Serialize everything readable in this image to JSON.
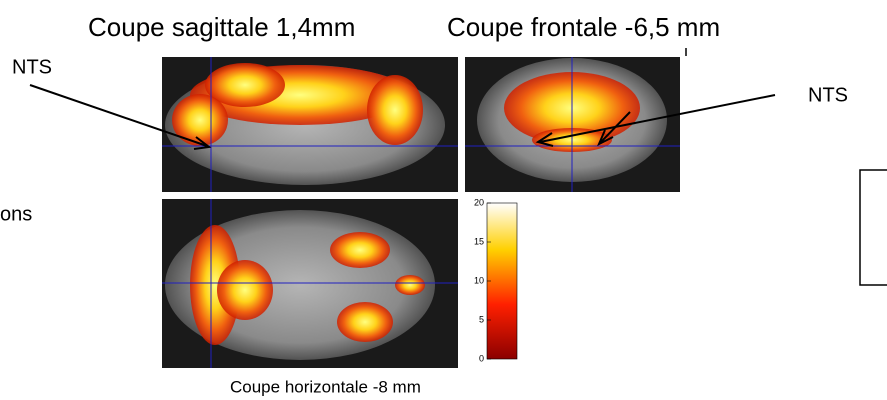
{
  "labels": {
    "sagittal_title": "Coupe sagittale 1,4mm",
    "frontal_title": "Coupe frontale -6,5 mm",
    "nts_left": "NTS",
    "nts_right": "NTS",
    "side_text": "ons",
    "horizontal_caption": "Coupe horizontale   -8 mm"
  },
  "colorbar": {
    "lim": [
      0,
      20
    ],
    "ticks": [
      0,
      5,
      10,
      15,
      20
    ]
  }
}
